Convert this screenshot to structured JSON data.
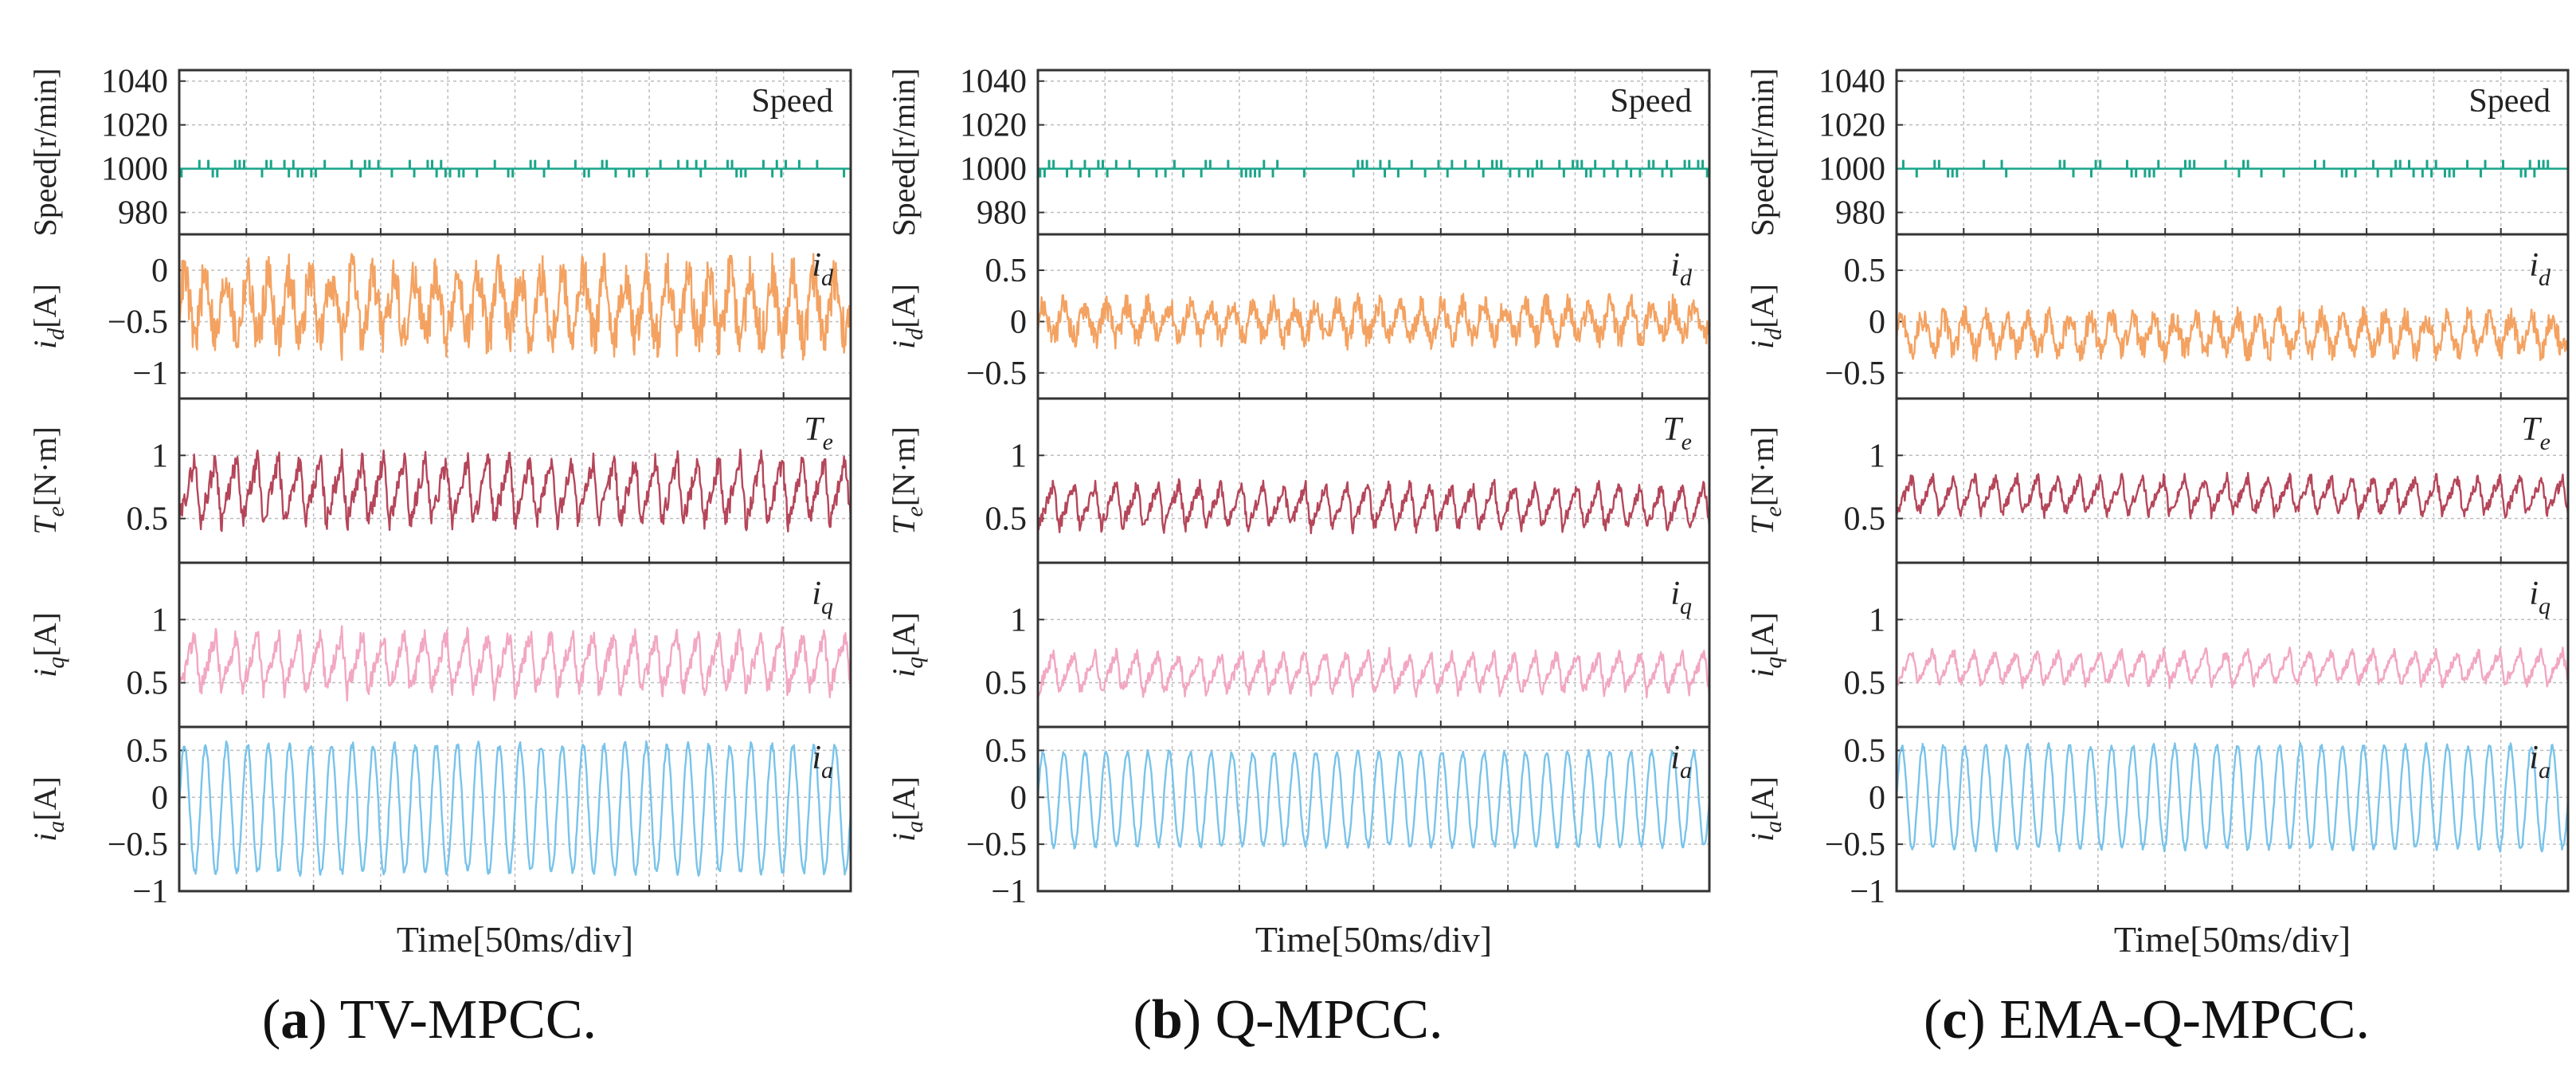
{
  "figure": {
    "xlabel": "Time[50ms/div]",
    "subplot_ylabels": {
      "speed": "Speed[r/min]",
      "id": "i_d[A]",
      "te": "T_e[N·m]",
      "iq": "i_q[A]",
      "ia": "i_a[A]"
    },
    "subplot_legends": {
      "speed": "Speed",
      "id": "i_d",
      "te": "T_e",
      "iq": "i_q",
      "ia": "i_a"
    },
    "colors": {
      "speed": "#1aa58a",
      "id": "#f4a261",
      "te": "#b5465a",
      "iq": "#f2a7c3",
      "ia": "#79c3ea",
      "grid": "#bdbdbd",
      "axis": "#333333"
    }
  },
  "chart_data": [
    {
      "type": "line",
      "caption_letter": "a",
      "caption_text": "TV-MPCC.",
      "title": "",
      "xlabel": "Time[50ms/div]",
      "x_divisions": 10,
      "grid": true,
      "subplots": [
        {
          "key": "speed",
          "ylabel": "Speed[r/min]",
          "legend": "Speed",
          "ylim": [
            970,
            1045
          ],
          "yticks": [
            "980",
            "1000",
            "1020",
            "1040"
          ],
          "ytick_values": [
            980,
            1000,
            1020,
            1040
          ],
          "signal": {
            "center": 1000,
            "ripple": 3,
            "cycles": 0,
            "style": "pulses",
            "pulse_amp": 4
          }
        },
        {
          "key": "id",
          "ylabel": "i_d[A]",
          "legend": "i_d",
          "ylim": [
            -1.25,
            0.35
          ],
          "yticks": [
            "0",
            "−0.5",
            "−1"
          ],
          "ytick_values": [
            0,
            -0.5,
            -1
          ],
          "signal": {
            "center": -0.35,
            "ripple": 0.42,
            "cycles": 32,
            "style": "noisy"
          }
        },
        {
          "key": "te",
          "ylabel": "T_e[N·m]",
          "legend": "T_e",
          "ylim": [
            0.15,
            1.45
          ],
          "yticks": [
            "1",
            "0.5"
          ],
          "ytick_values": [
            1,
            0.5
          ],
          "signal": {
            "center": 0.72,
            "ripple": 0.3,
            "cycles": 32,
            "style": "sawtooth"
          }
        },
        {
          "key": "iq",
          "ylabel": "i_q[A]",
          "legend": "i_q",
          "ylim": [
            0.15,
            1.45
          ],
          "yticks": [
            "1",
            "0.5"
          ],
          "ytick_values": [
            1,
            0.5
          ],
          "signal": {
            "center": 0.66,
            "ripple": 0.27,
            "cycles": 32,
            "style": "sawtooth"
          }
        },
        {
          "key": "ia",
          "ylabel": "i_a[A]",
          "legend": "i_a",
          "ylim": [
            -1.0,
            0.75
          ],
          "yticks": [
            "0.5",
            "0",
            "−0.5",
            "−1"
          ],
          "ytick_values": [
            0.5,
            0,
            -0.5,
            -1
          ],
          "signal": {
            "center": -0.12,
            "ripple": 0.68,
            "cycles": 32,
            "style": "sine"
          }
        }
      ]
    },
    {
      "type": "line",
      "caption_letter": "b",
      "caption_text": "Q-MPCC.",
      "title": "",
      "xlabel": "Time[50ms/div]",
      "x_divisions": 10,
      "grid": true,
      "subplots": [
        {
          "key": "speed",
          "ylabel": "Speed[r/min]",
          "legend": "Speed",
          "ylim": [
            970,
            1045
          ],
          "yticks": [
            "980",
            "1000",
            "1020",
            "1040"
          ],
          "ytick_values": [
            980,
            1000,
            1020,
            1040
          ],
          "signal": {
            "center": 1000,
            "ripple": 3,
            "cycles": 0,
            "style": "pulses",
            "pulse_amp": 4
          }
        },
        {
          "key": "id",
          "ylabel": "i_d[A]",
          "legend": "i_d",
          "ylim": [
            -0.75,
            0.85
          ],
          "yticks": [
            "0.5",
            "0",
            "−0.5"
          ],
          "ytick_values": [
            0.5,
            0,
            -0.5
          ],
          "signal": {
            "center": 0.0,
            "ripple": 0.22,
            "cycles": 32,
            "style": "noisy"
          }
        },
        {
          "key": "te",
          "ylabel": "T_e[N·m]",
          "legend": "T_e",
          "ylim": [
            0.15,
            1.45
          ],
          "yticks": [
            "1",
            "0.5"
          ],
          "ytick_values": [
            1,
            0.5
          ],
          "signal": {
            "center": 0.6,
            "ripple": 0.2,
            "cycles": 32,
            "style": "sawtooth"
          }
        },
        {
          "key": "iq",
          "ylabel": "i_q[A]",
          "legend": "i_q",
          "ylim": [
            0.15,
            1.45
          ],
          "yticks": [
            "1",
            "0.5"
          ],
          "ytick_values": [
            1,
            0.5
          ],
          "signal": {
            "center": 0.58,
            "ripple": 0.18,
            "cycles": 32,
            "style": "sawtooth"
          }
        },
        {
          "key": "ia",
          "ylabel": "i_a[A]",
          "legend": "i_a",
          "ylim": [
            -1.0,
            0.75
          ],
          "yticks": [
            "0.5",
            "0",
            "−0.5",
            "−1"
          ],
          "ytick_values": [
            0.5,
            0,
            -0.5,
            -1
          ],
          "signal": {
            "center": -0.02,
            "ripple": 0.5,
            "cycles": 32,
            "style": "sine"
          }
        }
      ]
    },
    {
      "type": "line",
      "caption_letter": "c",
      "caption_text": "EMA-Q-MPCC.",
      "title": "",
      "xlabel": "Time[50ms/div]",
      "x_divisions": 10,
      "grid": true,
      "subplots": [
        {
          "key": "speed",
          "ylabel": "Speed[r/min]",
          "legend": "Speed",
          "ylim": [
            970,
            1045
          ],
          "yticks": [
            "980",
            "1000",
            "1020",
            "1040"
          ],
          "ytick_values": [
            980,
            1000,
            1020,
            1040
          ],
          "signal": {
            "center": 1000,
            "ripple": 3,
            "cycles": 0,
            "style": "pulses",
            "pulse_amp": 4
          }
        },
        {
          "key": "id",
          "ylabel": "i_d[A]",
          "legend": "i_d",
          "ylim": [
            -0.75,
            0.85
          ],
          "yticks": [
            "0.5",
            "0",
            "−0.5"
          ],
          "ytick_values": [
            0.5,
            0,
            -0.5
          ],
          "signal": {
            "center": -0.12,
            "ripple": 0.22,
            "cycles": 32,
            "style": "noisy"
          }
        },
        {
          "key": "te",
          "ylabel": "T_e[N·m]",
          "legend": "T_e",
          "ylim": [
            0.15,
            1.45
          ],
          "yticks": [
            "1",
            "0.5"
          ],
          "ytick_values": [
            1,
            0.5
          ],
          "signal": {
            "center": 0.68,
            "ripple": 0.17,
            "cycles": 32,
            "style": "sawtooth"
          }
        },
        {
          "key": "iq",
          "ylabel": "i_q[A]",
          "legend": "i_q",
          "ylim": [
            0.15,
            1.45
          ],
          "yticks": [
            "1",
            "0.5"
          ],
          "ytick_values": [
            1,
            0.5
          ],
          "signal": {
            "center": 0.62,
            "ripple": 0.15,
            "cycles": 32,
            "style": "sawtooth"
          }
        },
        {
          "key": "ia",
          "ylabel": "i_a[A]",
          "legend": "i_a",
          "ylim": [
            -1.0,
            0.75
          ],
          "yticks": [
            "0.5",
            "0",
            "−0.5",
            "−1"
          ],
          "ytick_values": [
            0.5,
            0,
            -0.5,
            -1
          ],
          "signal": {
            "center": 0.0,
            "ripple": 0.55,
            "cycles": 32,
            "style": "sine"
          }
        }
      ]
    }
  ]
}
